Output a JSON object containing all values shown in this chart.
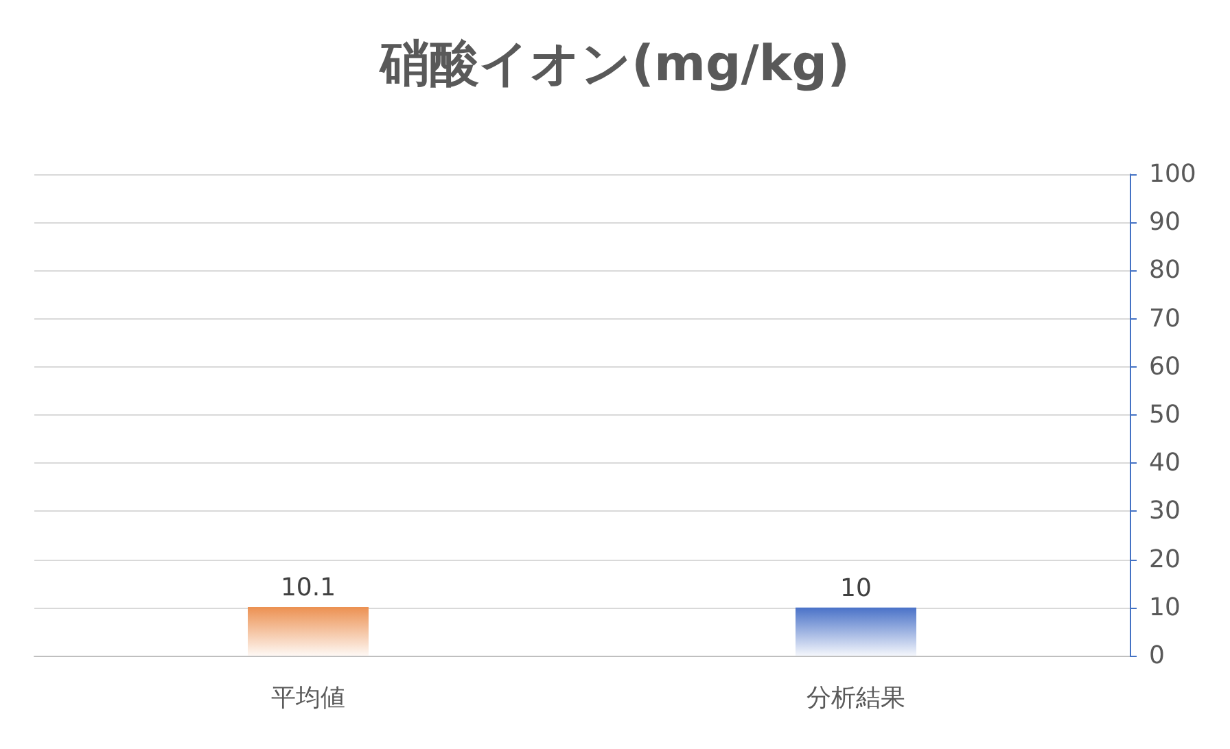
{
  "chart_data": {
    "type": "bar",
    "title": "硝酸イオン(mg/kg)",
    "categories": [
      "平均値",
      "分析結果"
    ],
    "values": [
      10.1,
      10
    ],
    "colors": [
      "#ec9152",
      "#4a72c8"
    ],
    "ylim": [
      0,
      100
    ],
    "yticks": [
      0,
      10,
      20,
      30,
      40,
      50,
      60,
      70,
      80,
      90,
      100
    ],
    "grid": "y",
    "data_labels": true
  }
}
